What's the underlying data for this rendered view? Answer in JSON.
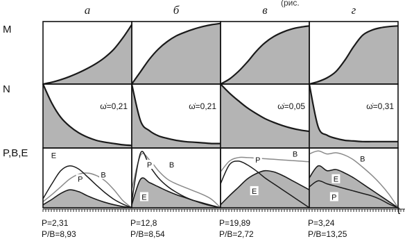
{
  "top_text": "(рис.",
  "row_labels": [
    "M",
    "N",
    "P,B,E"
  ],
  "x_label": "t",
  "columns": [
    {
      "title": "а",
      "omega": "ω̇=0,21",
      "stat1": "P=2,31",
      "stat2": "P/B=8,93"
    },
    {
      "title": "б",
      "omega": "ω̇=0,21",
      "stat1": "P=12,8",
      "stat2": "P/B=8,54"
    },
    {
      "title": "в",
      "omega": "ω̇=0,05",
      "stat1": "P=19,89",
      "stat2": "P/B=2,72"
    },
    {
      "title": "г",
      "omega": "ω̇=0,31",
      "stat1": "P=3,24",
      "stat2": "P/B=13,25"
    }
  ],
  "curve_labels": {
    "P": "P",
    "B": "B",
    "E": "E"
  },
  "colors": {
    "fill": "#b4b4b4",
    "line_dark": "#1a1a1a",
    "line_gray": "#8a8a8a"
  },
  "chart_data": {
    "type": "area",
    "x": [
      0,
      0.1,
      0.2,
      0.3,
      0.4,
      0.5,
      0.6,
      0.7,
      0.8,
      0.9,
      1.0
    ],
    "panels": [
      {
        "M": [
          0.0,
          0.03,
          0.07,
          0.12,
          0.18,
          0.25,
          0.33,
          0.43,
          0.56,
          0.74,
          0.95
        ],
        "N": [
          1.0,
          0.7,
          0.48,
          0.34,
          0.24,
          0.17,
          0.12,
          0.09,
          0.07,
          0.05,
          0.04
        ],
        "series": [
          {
            "name": "P",
            "values": [
              0.15,
              0.4,
              0.62,
              0.7,
              0.65,
              0.52,
              0.38,
              0.25,
              0.14,
              0.06,
              0.0
            ]
          },
          {
            "name": "B",
            "values": [
              0.1,
              0.22,
              0.35,
              0.48,
              0.56,
              0.58,
              0.54,
              0.45,
              0.3,
              0.12,
              0.0
            ]
          },
          {
            "name": "E",
            "values": [
              0.05,
              0.14,
              0.24,
              0.3,
              0.27,
              0.2,
              0.14,
              0.09,
              0.05,
              0.02,
              0.0
            ]
          }
        ]
      },
      {
        "M": [
          0.0,
          0.2,
          0.4,
          0.56,
          0.68,
          0.77,
          0.83,
          0.88,
          0.92,
          0.95,
          0.97
        ],
        "N": [
          1.0,
          0.42,
          0.27,
          0.19,
          0.15,
          0.12,
          0.1,
          0.09,
          0.08,
          0.07,
          0.07
        ],
        "series": [
          {
            "name": "P",
            "values": [
              0.1,
              0.92,
              0.7,
              0.5,
              0.36,
              0.26,
              0.18,
              0.12,
              0.07,
              0.03,
              0.0
            ]
          },
          {
            "name": "B",
            "values": [
              0.3,
              0.88,
              0.8,
              0.62,
              0.48,
              0.4,
              0.34,
              0.28,
              0.22,
              0.14,
              0.0
            ]
          },
          {
            "name": "E",
            "values": [
              0.05,
              0.48,
              0.42,
              0.35,
              0.28,
              0.22,
              0.17,
              0.12,
              0.08,
              0.04,
              0.0
            ]
          }
        ]
      },
      {
        "M": [
          0.0,
          0.08,
          0.2,
          0.35,
          0.52,
          0.66,
          0.76,
          0.83,
          0.88,
          0.91,
          0.93
        ],
        "N": [
          1.0,
          0.86,
          0.74,
          0.63,
          0.54,
          0.46,
          0.4,
          0.35,
          0.31,
          0.28,
          0.26
        ],
        "series": [
          {
            "name": "P",
            "values": [
              0.4,
              0.72,
              0.78,
              0.72,
              0.62,
              0.5,
              0.4,
              0.3,
              0.2,
              0.1,
              0.0
            ]
          },
          {
            "name": "B",
            "values": [
              0.6,
              0.78,
              0.84,
              0.84,
              0.83,
              0.82,
              0.81,
              0.8,
              0.79,
              0.78,
              0.77
            ]
          },
          {
            "name": "E",
            "values": [
              0.05,
              0.2,
              0.34,
              0.48,
              0.57,
              0.62,
              0.6,
              0.54,
              0.46,
              0.38,
              0.3
            ]
          }
        ]
      },
      {
        "M": [
          0.0,
          0.04,
          0.1,
          0.2,
          0.38,
          0.6,
          0.78,
          0.86,
          0.9,
          0.92,
          0.93
        ],
        "N": [
          1.0,
          0.33,
          0.2,
          0.15,
          0.12,
          0.11,
          0.1,
          0.1,
          0.1,
          0.1,
          0.1
        ],
        "series": [
          {
            "name": "P",
            "values": [
              0.35,
              0.45,
              0.4,
              0.36,
              0.32,
              0.28,
              0.24,
              0.2,
              0.14,
              0.06,
              0.0
            ]
          },
          {
            "name": "B",
            "values": [
              0.9,
              0.95,
              0.9,
              0.92,
              0.88,
              0.8,
              0.68,
              0.55,
              0.4,
              0.22,
              0.0
            ]
          },
          {
            "name": "E",
            "values": [
              0.5,
              0.7,
              0.62,
              0.64,
              0.58,
              0.5,
              0.4,
              0.3,
              0.2,
              0.1,
              0.0
            ]
          }
        ]
      }
    ]
  }
}
